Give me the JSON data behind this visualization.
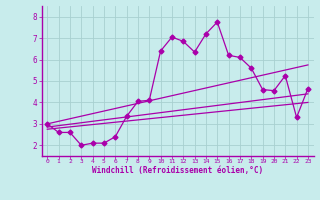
{
  "background_color": "#c8ecec",
  "grid_color": "#a8d0d0",
  "line_color": "#aa00aa",
  "spine_color": "#aa00aa",
  "xlabel": "Windchill (Refroidissement éolien,°C)",
  "xlim": [
    -0.5,
    23.5
  ],
  "ylim": [
    1.5,
    8.5
  ],
  "xticks": [
    0,
    1,
    2,
    3,
    4,
    5,
    6,
    7,
    8,
    9,
    10,
    11,
    12,
    13,
    14,
    15,
    16,
    17,
    18,
    19,
    20,
    21,
    22,
    23
  ],
  "yticks": [
    2,
    3,
    4,
    5,
    6,
    7,
    8
  ],
  "series": [
    {
      "x": [
        0,
        1,
        2,
        3,
        4,
        5,
        6,
        7,
        8,
        9,
        10,
        11,
        12,
        13,
        14,
        15,
        16,
        17,
        18,
        19,
        20,
        21,
        22,
        23
      ],
      "y": [
        3.0,
        2.6,
        2.6,
        2.0,
        2.1,
        2.1,
        2.4,
        3.35,
        4.05,
        4.1,
        6.4,
        7.05,
        6.85,
        6.35,
        7.2,
        7.75,
        6.2,
        6.1,
        5.6,
        4.6,
        4.55,
        5.25,
        3.3,
        4.65
      ],
      "marker": "D",
      "markersize": 2.5,
      "linewidth": 0.9,
      "linestyle": "-"
    },
    {
      "x": [
        0,
        23
      ],
      "y": [
        3.0,
        5.75
      ],
      "marker": null,
      "markersize": 0,
      "linewidth": 0.9,
      "linestyle": "-"
    },
    {
      "x": [
        0,
        23
      ],
      "y": [
        2.85,
        4.4
      ],
      "marker": null,
      "markersize": 0,
      "linewidth": 0.9,
      "linestyle": "-"
    },
    {
      "x": [
        0,
        23
      ],
      "y": [
        2.75,
        4.0
      ],
      "marker": null,
      "markersize": 0,
      "linewidth": 0.9,
      "linestyle": "-"
    }
  ]
}
